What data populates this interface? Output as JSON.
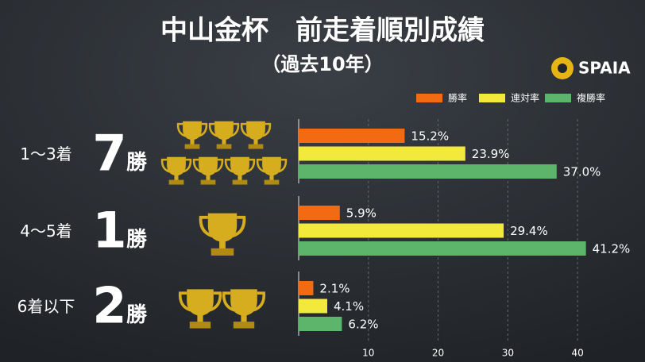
{
  "header": {
    "title": "中山金杯　前走着順別成績",
    "subtitle": "（過去10年）",
    "logo": "SPAIA"
  },
  "chart_data": {
    "type": "bar",
    "orientation": "horizontal",
    "categories": [
      "1〜3着",
      "4〜5着",
      "6着以下"
    ],
    "wins": [
      {
        "count": 7,
        "unit": "勝"
      },
      {
        "count": 1,
        "unit": "勝"
      },
      {
        "count": 2,
        "unit": "勝"
      }
    ],
    "series": [
      {
        "name": "勝率",
        "color": "#f26b12",
        "values": [
          15.2,
          5.9,
          2.1
        ],
        "value_labels": [
          "15.2%",
          "5.9%",
          "2.1%"
        ]
      },
      {
        "name": "連対率",
        "color": "#f2e93c",
        "values": [
          23.9,
          29.4,
          4.1
        ],
        "value_labels": [
          "23.9%",
          "29.4%",
          "4.1%"
        ]
      },
      {
        "name": "複勝率",
        "color": "#5db56c",
        "values": [
          37.0,
          41.2,
          6.2
        ],
        "value_labels": [
          "37.0%",
          "41.2%",
          "6.2%"
        ]
      }
    ],
    "xlim": [
      0,
      45
    ],
    "xticks": [
      10,
      20,
      30,
      40
    ],
    "grid": true
  }
}
